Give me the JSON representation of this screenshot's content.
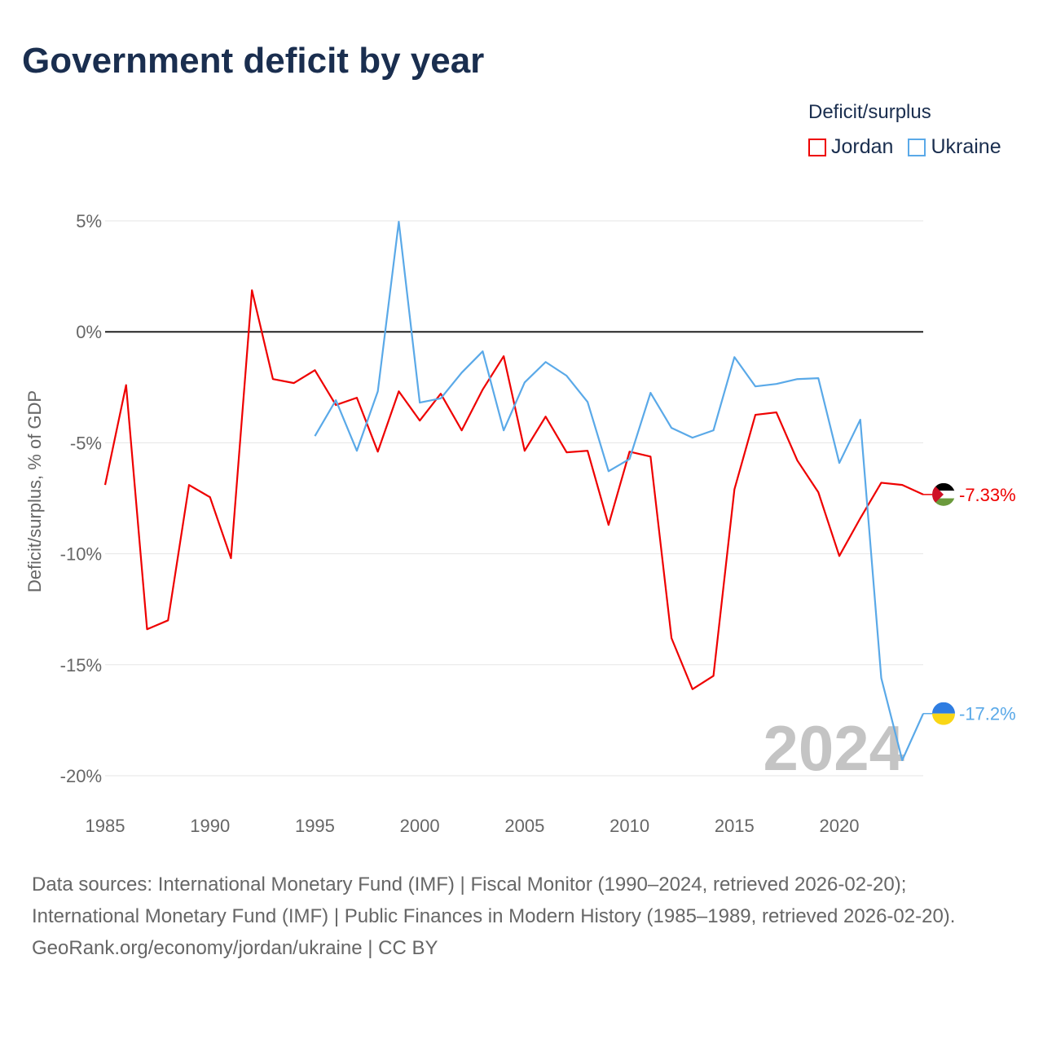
{
  "chart_data": {
    "type": "line",
    "title": "Government deficit by year",
    "xlabel": "",
    "ylabel": "Deficit/surplus, % of GDP",
    "xlim": [
      1985,
      2024
    ],
    "ylim": [
      -20,
      5
    ],
    "x_ticks": [
      1985,
      1990,
      1995,
      2000,
      2005,
      2010,
      2015,
      2020
    ],
    "x_tick_labels": [
      "1985",
      "1990",
      "1995",
      "2000",
      "2005",
      "2010",
      "2015",
      "2020"
    ],
    "y_ticks": [
      5,
      0,
      -5,
      -10,
      -15,
      -20
    ],
    "y_tick_labels": [
      "5%",
      "0%",
      "-5%",
      "-10%",
      "-15%",
      "-20%"
    ],
    "grid": true,
    "legend_title": "Deficit/surplus",
    "legend_placement": "top-right",
    "year_watermark": "2024",
    "series": [
      {
        "name": "Jordan",
        "color": "#ee0000",
        "end_label": "-7.33%",
        "x": [
          1985,
          1986,
          1987,
          1988,
          1989,
          1990,
          1991,
          1992,
          1993,
          1994,
          1995,
          1996,
          1997,
          1998,
          1999,
          2000,
          2001,
          2002,
          2003,
          2004,
          2005,
          2006,
          2007,
          2008,
          2009,
          2010,
          2011,
          2012,
          2013,
          2014,
          2015,
          2016,
          2017,
          2018,
          2019,
          2020,
          2021,
          2022,
          2023,
          2024
        ],
        "values": [
          -6.9,
          -2.4,
          -13.4,
          -13.0,
          -6.9,
          -7.45,
          -10.2,
          1.87,
          -2.13,
          -2.31,
          -1.73,
          -3.3,
          -2.97,
          -5.4,
          -2.68,
          -4.0,
          -2.79,
          -4.44,
          -2.6,
          -1.1,
          -5.36,
          -3.82,
          -5.43,
          -5.36,
          -8.7,
          -5.4,
          -5.62,
          -13.8,
          -16.1,
          -15.5,
          -7.1,
          -3.74,
          -3.63,
          -5.8,
          -7.23,
          -10.1,
          -8.4,
          -6.8,
          -6.9,
          -7.33
        ]
      },
      {
        "name": "Ukraine",
        "color": "#5aa9e8",
        "end_label": "-17.2%",
        "x": [
          1995,
          1996,
          1997,
          1998,
          1999,
          2000,
          2001,
          2002,
          2003,
          2004,
          2005,
          2006,
          2007,
          2008,
          2009,
          2010,
          2011,
          2012,
          2013,
          2014,
          2015,
          2016,
          2017,
          2018,
          2019,
          2020,
          2021,
          2022,
          2023,
          2024
        ],
        "values": [
          -4.7,
          -3.08,
          -5.36,
          -2.68,
          4.96,
          -3.19,
          -3.0,
          -1.84,
          -0.88,
          -4.44,
          -2.28,
          -1.36,
          -1.98,
          -3.16,
          -6.28,
          -5.73,
          -2.75,
          -4.33,
          -4.77,
          -4.44,
          -1.14,
          -2.46,
          -2.35,
          -2.13,
          -2.09,
          -5.91,
          -3.96,
          -15.6,
          -19.3,
          -17.2
        ]
      }
    ]
  },
  "footer": {
    "sources": "Data sources: International Monetary Fund (IMF) | Fiscal Monitor (1990–2024, retrieved 2026-02-20); International Monetary Fund (IMF) | Public Finances in Modern History (1985–1989, retrieved 2026-02-20).",
    "link": "GeoRank.org/economy/jordan/ukraine | CC BY"
  }
}
